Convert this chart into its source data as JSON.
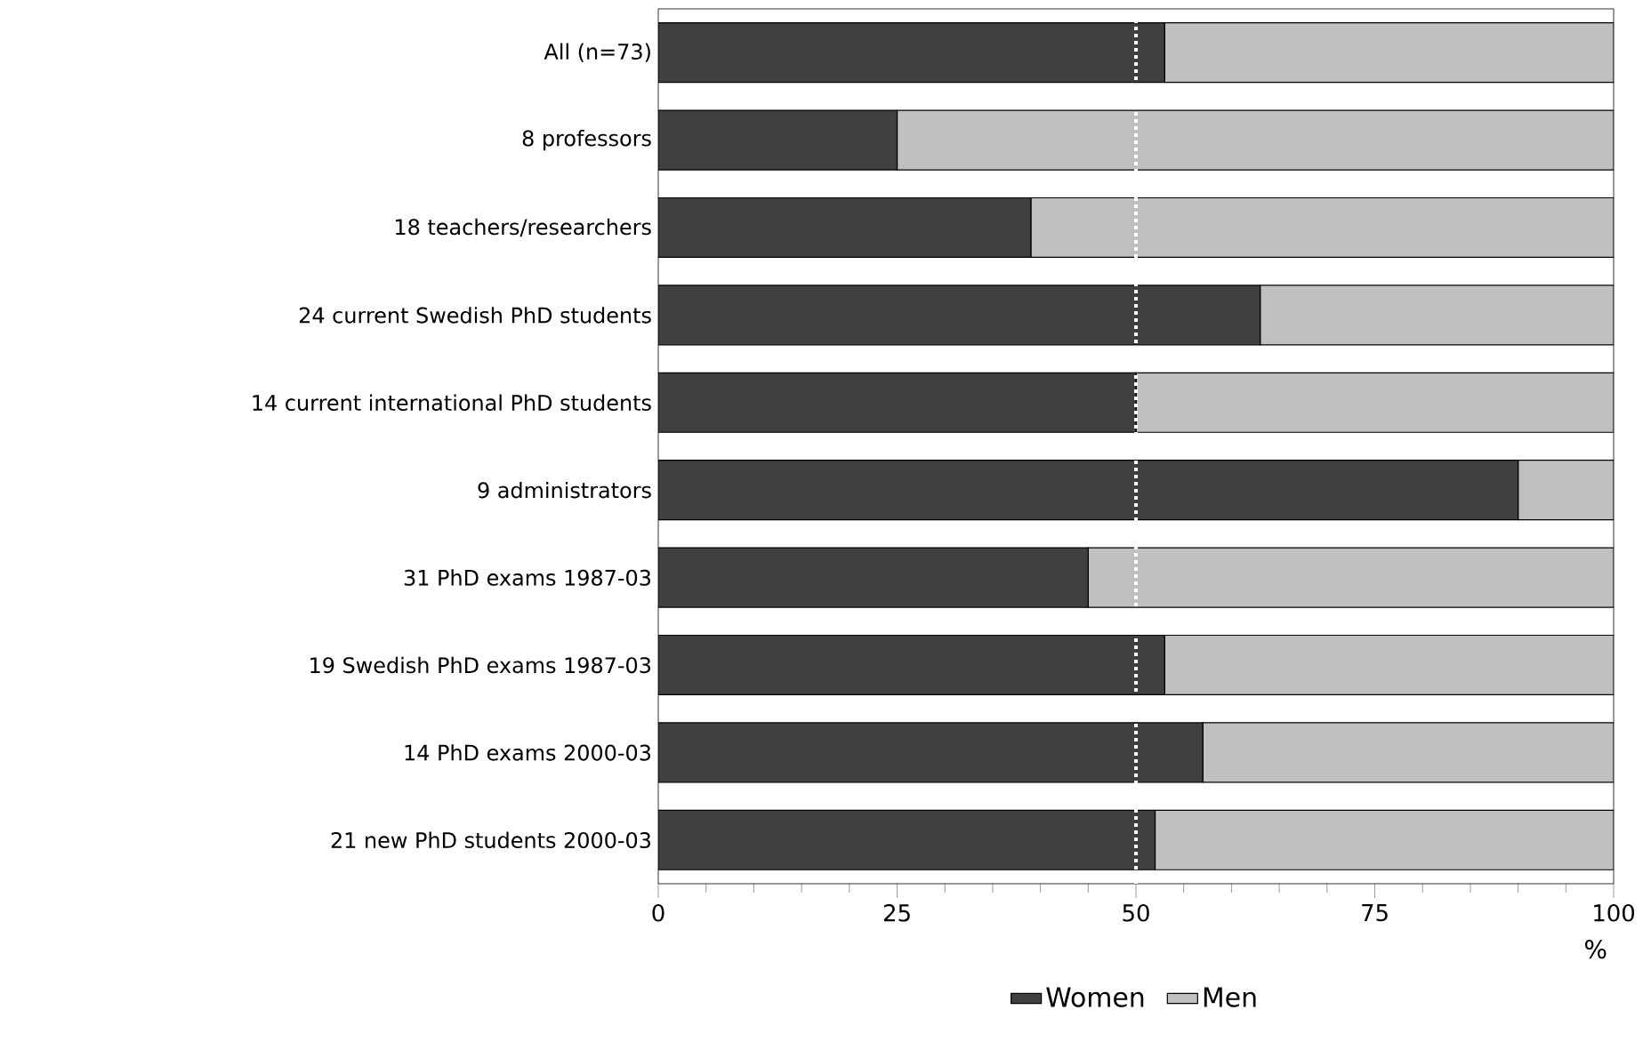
{
  "chart_data": {
    "type": "bar",
    "orientation": "horizontal",
    "stacked": true,
    "categories": [
      "All (n=73)",
      "8 professors",
      "18 teachers/researchers",
      "24 current Swedish PhD students",
      "14 current international PhD students",
      "9 administrators",
      "31 PhD exams 1987-03",
      "19 Swedish PhD exams 1987-03",
      "14 PhD exams 2000-03",
      "21 new PhD students 2000-03"
    ],
    "series": [
      {
        "name": "Women",
        "color": "#404040",
        "values": [
          53,
          25,
          39,
          63,
          50,
          90,
          45,
          53,
          57,
          52
        ]
      },
      {
        "name": "Men",
        "color": "#c0c0c0",
        "values": [
          47,
          75,
          61,
          37,
          50,
          10,
          55,
          47,
          43,
          48
        ]
      }
    ],
    "xlim": [
      0,
      100
    ],
    "xticks": [
      0,
      25,
      50,
      75,
      100
    ],
    "xlabel": "%",
    "ref_lines": [
      {
        "axis": "x",
        "value": 50,
        "color": "#ffffff",
        "line_style": "dotted"
      }
    ],
    "legend": "bottom",
    "grid": false
  }
}
